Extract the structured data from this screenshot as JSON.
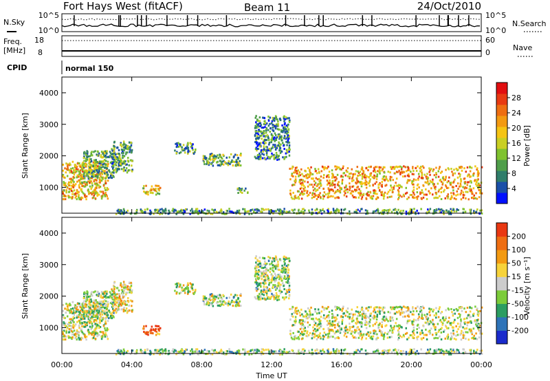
{
  "header": {
    "station": "Fort Hays West (fitACF)",
    "beam": "Beam 11",
    "date": "24/Oct/2010"
  },
  "top_panels": {
    "nsky_label": "N.Sky",
    "nsearch_label": "N.Search",
    "noise_ticks_left": [
      "10^5",
      "10^0"
    ],
    "noise_ticks_right": [
      "10^5",
      "10^0"
    ],
    "freq_label": "Freq.",
    "freq_unit": "[MHz]",
    "freq_ticks": [
      "18",
      "8"
    ],
    "nave_label": "Nave",
    "nave_ticks": [
      "60",
      "0"
    ],
    "cpid_label": "CPID",
    "cpid_value": "normal 150"
  },
  "chart_data": [
    {
      "type": "heatmap",
      "name": "power",
      "ylabel": "Slant Range [km]",
      "xlabel": "",
      "xticks": [
        "00:00",
        "04:00",
        "08:00",
        "12:00",
        "16:00",
        "20:00",
        "00:00"
      ],
      "yticks": [
        "1000",
        "2000",
        "3000",
        "4000"
      ],
      "xlim_hours": [
        0,
        24
      ],
      "ylim_km": [
        180,
        4500
      ],
      "colorbar": {
        "label": "Power [dB]",
        "ticks": [
          "4",
          "8",
          "12",
          "16",
          "20",
          "24",
          "28"
        ],
        "colors": [
          "#0010ff",
          "#1a4fa8",
          "#2f7d6a",
          "#4f9e4a",
          "#7fc22f",
          "#c9cf23",
          "#f5c414",
          "#f39a12",
          "#ee6e12",
          "#e83a12",
          "#e10e10"
        ]
      },
      "regions": [
        {
          "t": [
            0.0,
            2.6
          ],
          "r": [
            650,
            1850
          ],
          "level": 0.6
        },
        {
          "t": [
            1.2,
            3.0
          ],
          "r": [
            1300,
            2200
          ],
          "level": 0.35
        },
        {
          "t": [
            2.8,
            4.0
          ],
          "r": [
            1500,
            2500
          ],
          "level": 0.3
        },
        {
          "t": [
            4.6,
            5.6
          ],
          "r": [
            800,
            1100
          ],
          "level": 0.55
        },
        {
          "t": [
            6.4,
            7.6
          ],
          "r": [
            2100,
            2450
          ],
          "level": 0.3
        },
        {
          "t": [
            8.0,
            10.2
          ],
          "r": [
            1700,
            2100
          ],
          "level": 0.35
        },
        {
          "t": [
            10.0,
            10.6
          ],
          "r": [
            850,
            1050
          ],
          "level": 0.3
        },
        {
          "t": [
            11.0,
            13.0
          ],
          "r": [
            1900,
            3300
          ],
          "level": 0.25
        },
        {
          "t": [
            13.0,
            24.0
          ],
          "r": [
            650,
            1700
          ],
          "level": 0.65
        },
        {
          "t": [
            3.0,
            24.0
          ],
          "r": [
            180,
            350
          ],
          "level": 0.3
        }
      ]
    },
    {
      "type": "heatmap",
      "name": "velocity",
      "ylabel": "Slant Range [km]",
      "xlabel": "Time UT",
      "xticks": [
        "00:00",
        "04:00",
        "08:00",
        "12:00",
        "16:00",
        "20:00",
        "00:00"
      ],
      "yticks": [
        "1000",
        "2000",
        "3000",
        "4000"
      ],
      "xlim_hours": [
        0,
        24
      ],
      "ylim_km": [
        180,
        4500
      ],
      "colorbar": {
        "label": "Velocity [m s⁻¹]",
        "ticks": [
          "200",
          "100",
          "50",
          "15",
          "-15",
          "-50",
          "-100",
          "-200"
        ],
        "colors": [
          "#1a2bcc",
          "#2e73b8",
          "#2b9d61",
          "#7ccc3a",
          "#cccccc",
          "#f7d33a",
          "#f39a12",
          "#ef6e12",
          "#e93812"
        ]
      },
      "regions": [
        {
          "t": [
            0.0,
            2.6
          ],
          "r": [
            650,
            1850
          ],
          "level": 0.5
        },
        {
          "t": [
            1.2,
            3.0
          ],
          "r": [
            1300,
            2200
          ],
          "level": 0.45
        },
        {
          "t": [
            2.8,
            4.0
          ],
          "r": [
            1500,
            2500
          ],
          "level": 0.55
        },
        {
          "t": [
            4.6,
            5.6
          ],
          "r": [
            800,
            1100
          ],
          "level": 0.9
        },
        {
          "t": [
            6.4,
            7.6
          ],
          "r": [
            2100,
            2450
          ],
          "level": 0.5
        },
        {
          "t": [
            8.0,
            10.2
          ],
          "r": [
            1700,
            2100
          ],
          "level": 0.45
        },
        {
          "t": [
            11.0,
            13.0
          ],
          "r": [
            1900,
            3300
          ],
          "level": 0.45
        },
        {
          "t": [
            13.0,
            24.0
          ],
          "r": [
            650,
            1700
          ],
          "level": 0.5
        },
        {
          "t": [
            3.0,
            24.0
          ],
          "r": [
            180,
            350
          ],
          "level": 0.4
        }
      ]
    }
  ]
}
